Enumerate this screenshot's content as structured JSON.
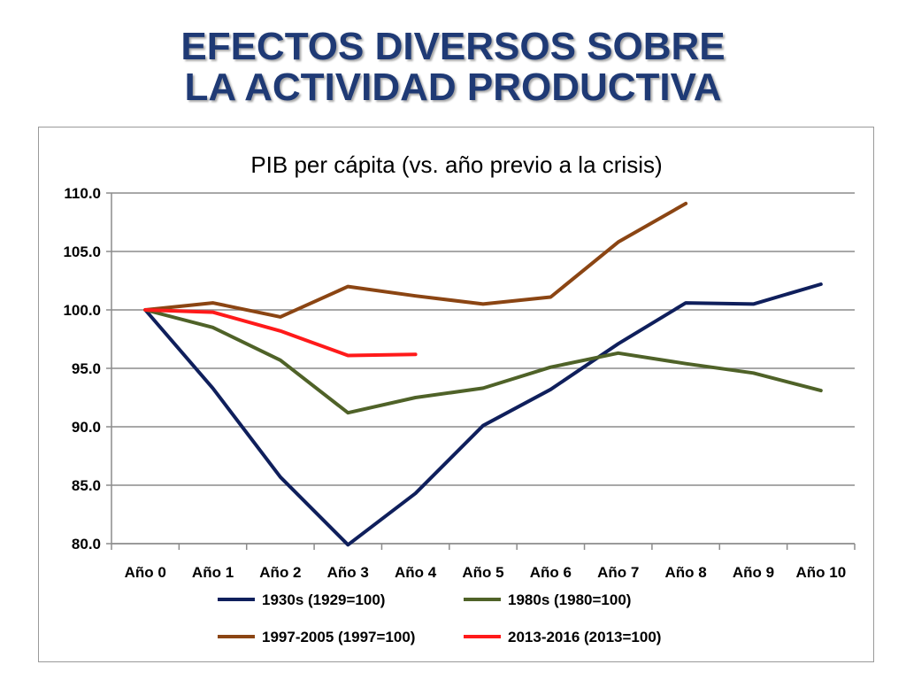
{
  "slide": {
    "title_line1": "EFECTOS DIVERSOS SOBRE",
    "title_line2": "LA ACTIVIDAD PRODUCTIVA"
  },
  "chart_data": {
    "type": "line",
    "title": "PIB per cápita (vs. año previo a la crisis)",
    "xlabel": "",
    "ylabel": "",
    "categories": [
      "Año 0",
      "Año 1",
      "Año 2",
      "Año 3",
      "Año 4",
      "Año 5",
      "Año 6",
      "Año 7",
      "Año 8",
      "Año 9",
      "Año 10"
    ],
    "ylim": [
      80,
      110
    ],
    "yticks": [
      "80.0",
      "85.0",
      "90.0",
      "95.0",
      "100.0",
      "105.0",
      "110.0"
    ],
    "grid": true,
    "legend_position": "bottom",
    "series": [
      {
        "name": "1930s (1929=100)",
        "color": "#0f1f5c",
        "values": [
          100.0,
          93.3,
          85.7,
          79.9,
          84.3,
          90.1,
          93.2,
          97.1,
          100.6,
          100.5,
          102.2
        ]
      },
      {
        "name": "1980s (1980=100)",
        "color": "#4f6228",
        "values": [
          100.0,
          98.5,
          95.7,
          91.2,
          92.5,
          93.3,
          95.1,
          96.3,
          95.4,
          94.6,
          93.1
        ]
      },
      {
        "name": "1997-2005 (1997=100)",
        "color": "#8b4513",
        "values": [
          100.0,
          100.6,
          99.4,
          102.0,
          101.2,
          100.5,
          101.1,
          105.8,
          109.1,
          null,
          null
        ]
      },
      {
        "name": "2013-2016 (2013=100)",
        "color": "#ff1a1a",
        "values": [
          100.0,
          99.8,
          98.2,
          96.1,
          96.2,
          null,
          null,
          null,
          null,
          null,
          null
        ]
      }
    ]
  }
}
